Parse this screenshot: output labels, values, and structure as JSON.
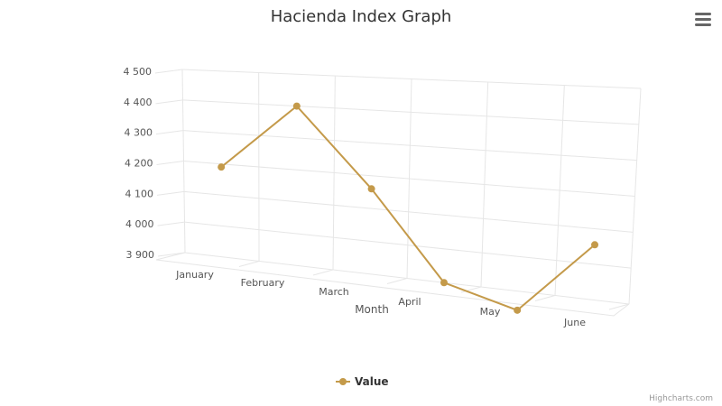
{
  "chart_data": {
    "type": "line",
    "title": "Hacienda Index Graph",
    "xlabel": "Month",
    "ylabel": "",
    "categories": [
      "January",
      "February",
      "March",
      "April",
      "May",
      "June"
    ],
    "series": [
      {
        "name": "Value",
        "color": "#c49a4a",
        "values": [
          4190,
          4400,
          4160,
          3900,
          3845,
          4055
        ]
      }
    ],
    "ylim": [
      3900,
      4500
    ],
    "yticks": [
      3900,
      4000,
      4100,
      4200,
      4300,
      4400,
      4500
    ],
    "ytick_labels": [
      "3 900",
      "4 000",
      "4 100",
      "4 200",
      "4 300",
      "4 400",
      "4 500"
    ],
    "grid": true,
    "legend": "bottom-center",
    "view": "3d"
  },
  "menu": {
    "icon": "hamburger-menu-icon"
  },
  "credits": "Highcharts.com"
}
